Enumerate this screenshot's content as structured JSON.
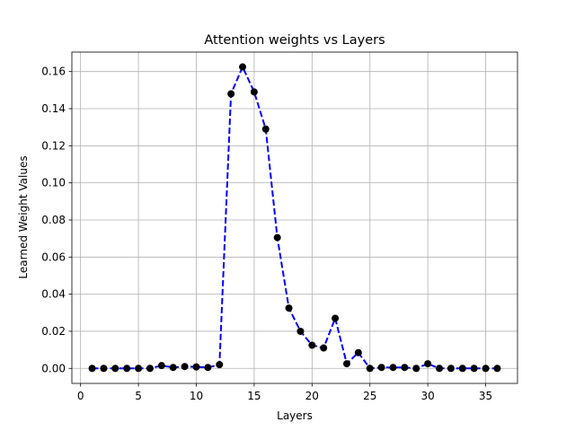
{
  "chart_data": {
    "type": "line",
    "title": "Attention weights vs Layers",
    "xlabel": "Layers",
    "ylabel": "Learned Weight Values",
    "x": [
      1,
      2,
      3,
      4,
      5,
      6,
      7,
      8,
      9,
      10,
      11,
      12,
      13,
      14,
      15,
      16,
      17,
      18,
      19,
      20,
      21,
      22,
      23,
      24,
      25,
      26,
      27,
      28,
      29,
      30,
      31,
      32,
      33,
      34,
      35,
      36
    ],
    "series": [
      {
        "color": "#0000ff",
        "marker_color": "#000000",
        "values": [
          0,
          0,
          0,
          0,
          0,
          0,
          0.0015,
          0.0005,
          0.001,
          0.0008,
          0.0005,
          0.002,
          0.148,
          0.1625,
          0.149,
          0.129,
          0.0705,
          0.0325,
          0.02,
          0.0125,
          0.011,
          0.027,
          0.0025,
          0.0085,
          0,
          0.0005,
          0.0005,
          0.0005,
          0,
          0.0025,
          0,
          0,
          0,
          0,
          0,
          0
        ]
      }
    ],
    "xlim": [
      -0.75,
      37.75
    ],
    "xticks": [
      0,
      5,
      10,
      15,
      20,
      25,
      30,
      35
    ],
    "ylim": [
      -0.0081,
      0.1705
    ],
    "yticks": [
      {
        "value": 0,
        "label": "0.00"
      },
      {
        "value": 0.02,
        "label": "0.02"
      },
      {
        "value": 0.04,
        "label": "0.04"
      },
      {
        "value": 0.06,
        "label": "0.06"
      },
      {
        "value": 0.08,
        "label": "0.08"
      },
      {
        "value": 0.1,
        "label": "0.10"
      },
      {
        "value": 0.12,
        "label": "0.12"
      },
      {
        "value": 0.14,
        "label": "0.14"
      },
      {
        "value": 0.16,
        "label": "0.16"
      }
    ],
    "grid": true
  }
}
